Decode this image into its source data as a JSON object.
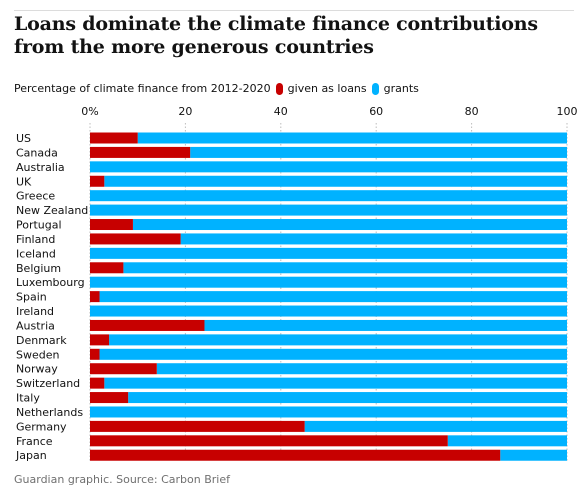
{
  "header": {
    "title": "Loans dominate the climate finance contributions from the more generous countries"
  },
  "legend": {
    "description": "Percentage of climate finance from 2012-2020",
    "loans_label": "given as loans",
    "grants_label": "grants"
  },
  "colors": {
    "loans": "#c70000",
    "grants": "#00b2ff",
    "gridline": "#bdbdbd"
  },
  "footer": {
    "source": "Guardian graphic. Source: Carbon Brief"
  },
  "chart_data": {
    "type": "bar",
    "orientation": "horizontal",
    "stacked": true,
    "xlim": [
      0,
      100
    ],
    "x_ticks": [
      0,
      20,
      40,
      60,
      80,
      100
    ],
    "x_tick_labels": [
      "0%",
      "20",
      "40",
      "60",
      "80",
      "100"
    ],
    "categories": [
      "US",
      "Canada",
      "Australia",
      "UK",
      "Greece",
      "New Zealand",
      "Portugal",
      "Finland",
      "Iceland",
      "Belgium",
      "Luxembourg",
      "Spain",
      "Ireland",
      "Austria",
      "Denmark",
      "Sweden",
      "Norway",
      "Switzerland",
      "Italy",
      "Netherlands",
      "Germany",
      "France",
      "Japan"
    ],
    "series": [
      {
        "name": "given as loans",
        "values": [
          10,
          21,
          0,
          3,
          0,
          0,
          9,
          19,
          0,
          7,
          0,
          2,
          0,
          24,
          4,
          2,
          14,
          3,
          8,
          0,
          45,
          75,
          86
        ]
      },
      {
        "name": "grants",
        "values": [
          90,
          79,
          100,
          97,
          100,
          100,
          91,
          81,
          100,
          93,
          100,
          98,
          100,
          76,
          96,
          98,
          86,
          97,
          92,
          100,
          55,
          25,
          14
        ]
      }
    ],
    "grid": true,
    "legend_position": "top-left"
  }
}
